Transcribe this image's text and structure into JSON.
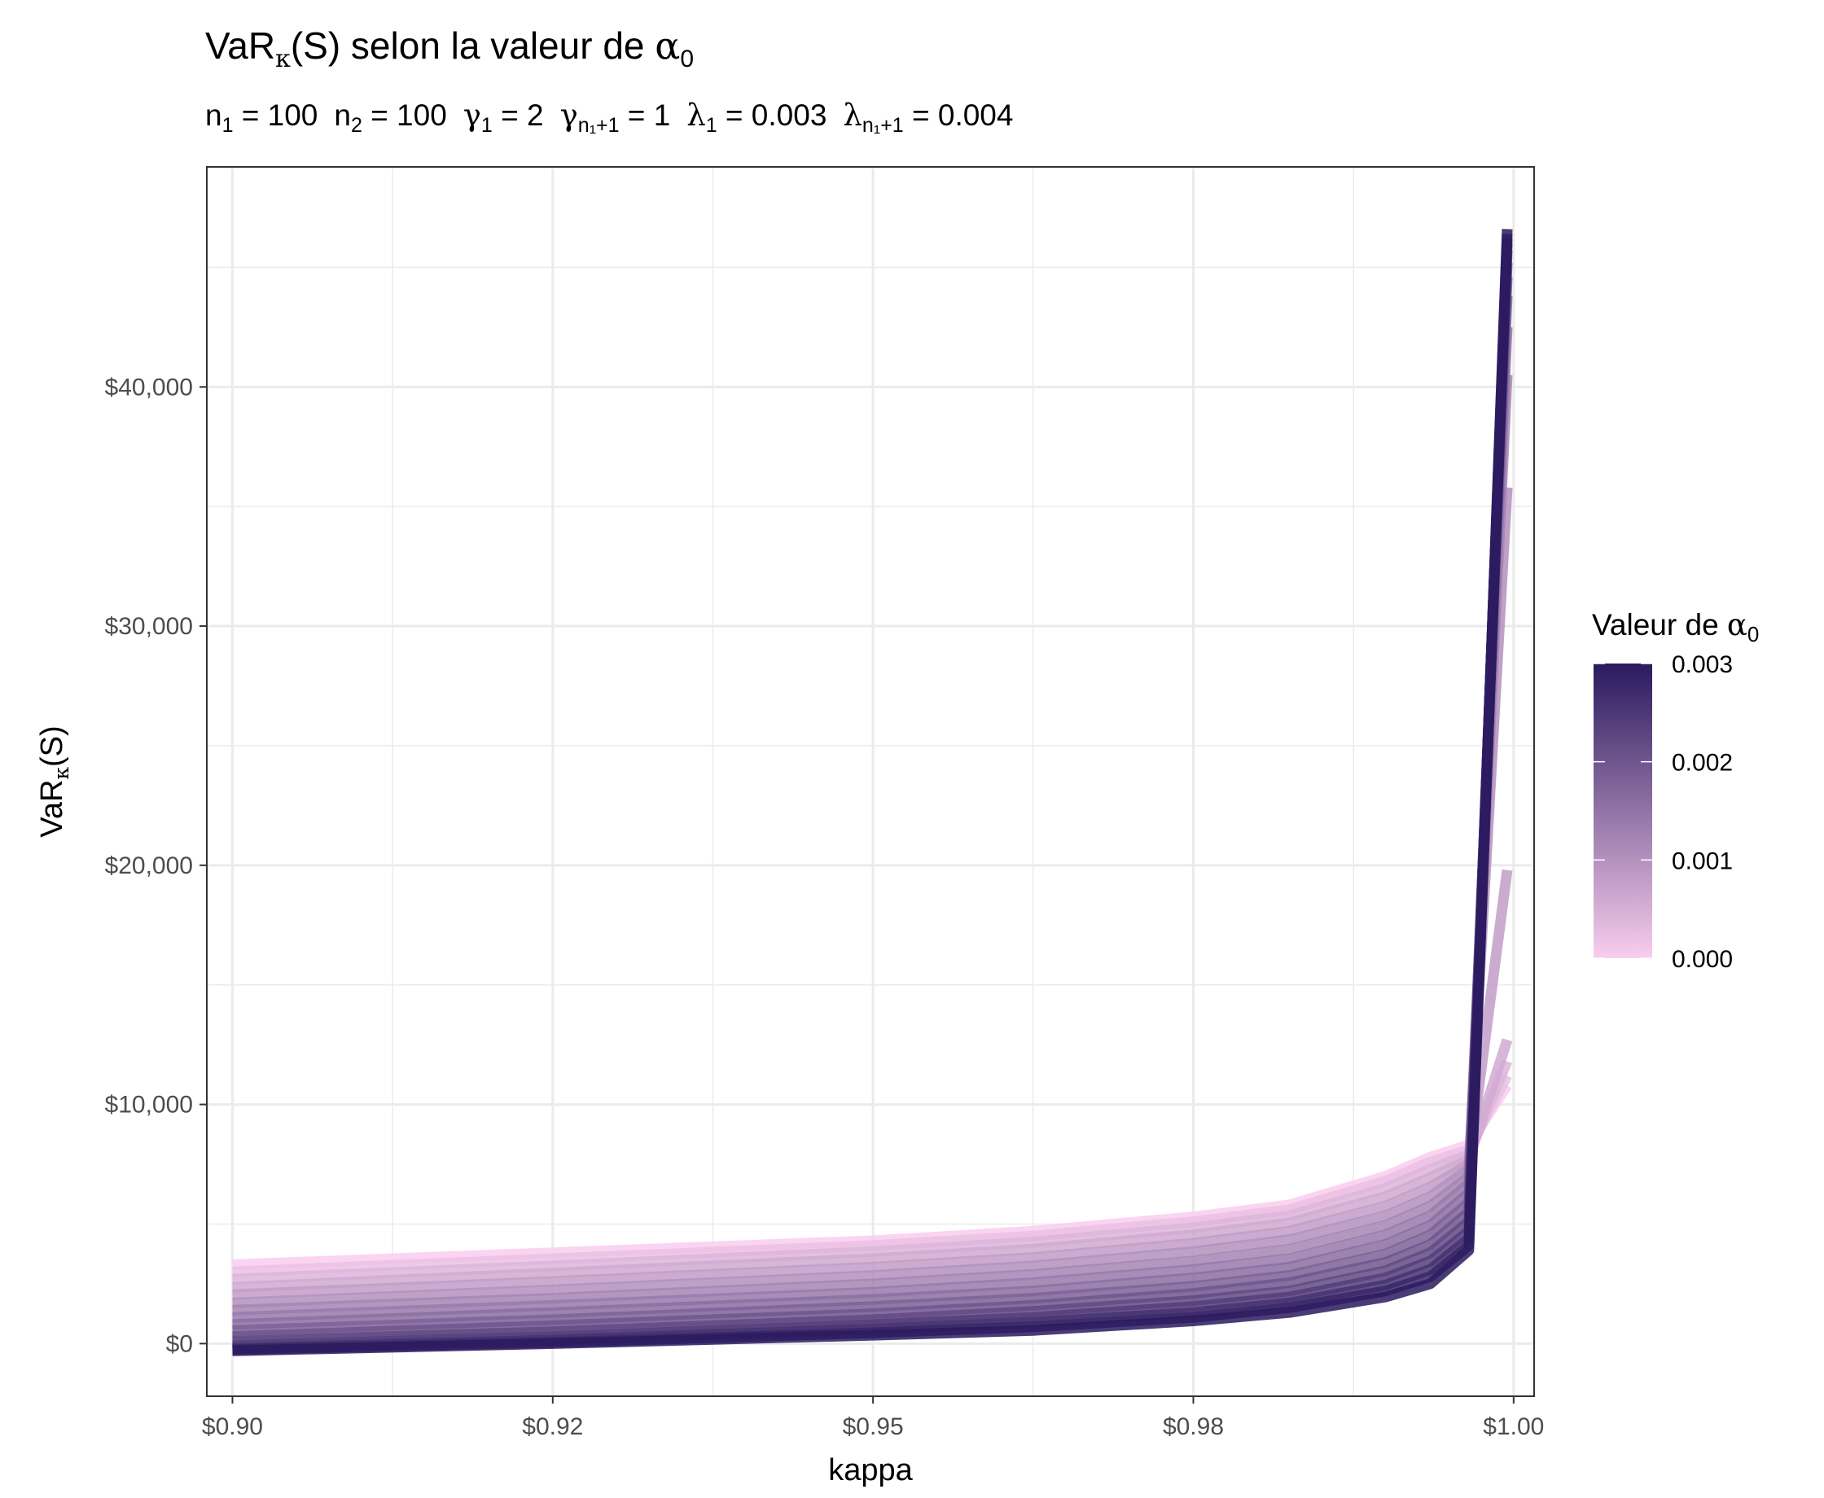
{
  "chart_data": {
    "type": "line",
    "title": "VaRκ(S) selon la valeur de α0",
    "title_parts": {
      "main_a": "VaR",
      "main_sub": "κ",
      "main_b": "(S) selon la valeur de ",
      "alpha": "α",
      "alpha_sub": "0"
    },
    "subtitle": "n1 = 100  n2 = 100  γ1 = 2  γn1+1 = 1  λ1 = 0.003  λn1+1 = 0.004",
    "subtitle_parts": {
      "n1": "n",
      "n1_sub": "1",
      "n1_val": " = 100",
      "n2": "n",
      "n2_sub": "2",
      "n2_val": " = 100",
      "g1": "γ",
      "g1_sub": "1",
      "g1_val": " = 2",
      "g2": "γ",
      "g2_sub": "n₁+1",
      "g2_val": " = 1",
      "l1": "λ",
      "l1_sub": "1",
      "l1_val": " = 0.003",
      "l2": "λ",
      "l2_sub": "n₁+1",
      "l2_val": " = 0.004"
    },
    "xlabel": "kappa",
    "ylabel": "VaRκ(S)",
    "ylabel_parts": {
      "a": "VaR",
      "sub": "κ",
      "b": "(S)"
    },
    "xlim": [
      0.898,
      1.0016
    ],
    "ylim": [
      -2200,
      49200
    ],
    "x_ticks": [
      0.9,
      0.925,
      0.95,
      0.975,
      1.0
    ],
    "x_tick_labels": [
      "$0.90",
      "$0.92",
      "$0.95",
      "$0.98",
      "$1.00"
    ],
    "y_ticks": [
      0,
      10000,
      20000,
      30000,
      40000
    ],
    "y_tick_labels": [
      "$0",
      "$10,000",
      "$20,000",
      "$30,000",
      "$40,000"
    ],
    "grid": true,
    "legend": {
      "title": "Valeur de α0",
      "title_parts": {
        "a": "Valeur de ",
        "alpha": "α",
        "sub": "0"
      },
      "placement": "right",
      "type": "colorbar",
      "range": [
        0,
        0.003
      ],
      "ticks": [
        0.003,
        0.002,
        0.001,
        0.0
      ],
      "tick_labels": [
        "0.003",
        "0.002",
        "0.001",
        "0.000"
      ],
      "color_low": "#f9cdee",
      "color_high": "#2a1a5e"
    },
    "x": [
      0.9,
      0.925,
      0.95,
      0.9625,
      0.975,
      0.9825,
      0.99,
      0.9935,
      0.9965,
      0.9995
    ],
    "series": [
      {
        "alpha0": 0.0,
        "values": [
          3300,
          3800,
          4300,
          4700,
          5300,
          5800,
          7000,
          7800,
          8300,
          10800
        ]
      },
      {
        "alpha0": 0.0002,
        "values": [
          3000,
          3550,
          4100,
          4500,
          5100,
          5600,
          6800,
          7600,
          8100,
          11200
        ]
      },
      {
        "alpha0": 0.0004,
        "values": [
          2700,
          3250,
          3850,
          4250,
          4850,
          5350,
          6500,
          7300,
          7900,
          11800
        ]
      },
      {
        "alpha0": 0.0006,
        "values": [
          2350,
          2950,
          3550,
          3950,
          4550,
          5050,
          6150,
          6950,
          7700,
          12700
        ]
      },
      {
        "alpha0": 0.0008,
        "values": [
          2050,
          2600,
          3200,
          3600,
          4200,
          4700,
          5750,
          6550,
          7500,
          19800
        ]
      },
      {
        "alpha0": 0.001,
        "values": [
          1700,
          2250,
          2850,
          3250,
          3850,
          4350,
          5350,
          6150,
          7300,
          35800
        ]
      },
      {
        "alpha0": 0.0012,
        "values": [
          1400,
          1900,
          2500,
          2900,
          3450,
          3950,
          4950,
          5750,
          7000,
          40500
        ]
      },
      {
        "alpha0": 0.0014,
        "values": [
          1100,
          1600,
          2150,
          2550,
          3100,
          3550,
          4550,
          5350,
          6700,
          42500
        ]
      },
      {
        "alpha0": 0.0016,
        "values": [
          800,
          1300,
          1850,
          2200,
          2750,
          3200,
          4150,
          4950,
          6300,
          43800
        ]
      },
      {
        "alpha0": 0.0018,
        "values": [
          550,
          1000,
          1550,
          1900,
          2400,
          2850,
          3750,
          4550,
          5900,
          44600
        ]
      },
      {
        "alpha0": 0.002,
        "values": [
          300,
          750,
          1250,
          1600,
          2100,
          2550,
          3400,
          4150,
          5500,
          45200
        ]
      },
      {
        "alpha0": 0.0022,
        "values": [
          100,
          500,
          1000,
          1350,
          1800,
          2200,
          3050,
          3800,
          5100,
          45700
        ]
      },
      {
        "alpha0": 0.0024,
        "values": [
          -100,
          300,
          800,
          1100,
          1550,
          1950,
          2750,
          3450,
          4700,
          46000
        ]
      },
      {
        "alpha0": 0.0026,
        "values": [
          -200,
          150,
          600,
          900,
          1300,
          1700,
          2450,
          3100,
          4400,
          46200
        ]
      },
      {
        "alpha0": 0.0028,
        "values": [
          -250,
          50,
          450,
          700,
          1100,
          1500,
          2200,
          2800,
          4100,
          46400
        ]
      },
      {
        "alpha0": 0.003,
        "values": [
          -300,
          0,
          350,
          550,
          950,
          1300,
          1950,
          2500,
          3900,
          46600
        ]
      }
    ]
  }
}
